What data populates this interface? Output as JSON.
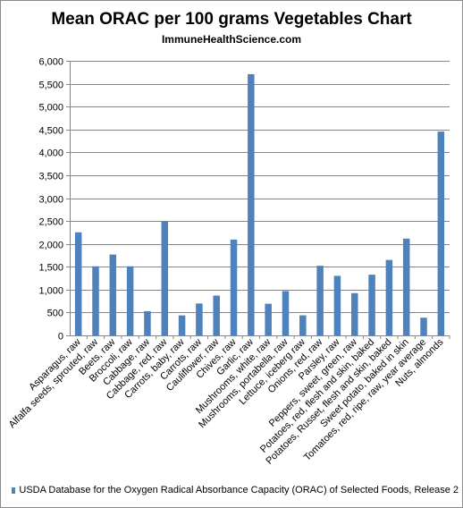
{
  "colors": {
    "bar": "#4f81bd",
    "grid": "#878787",
    "axis": "#878787"
  },
  "chart_data": {
    "type": "bar",
    "title": "Mean ORAC per 100 grams Vegetables Chart",
    "subtitle": "ImmuneHealthScience.com",
    "xlabel": "",
    "ylabel": "",
    "ylim": [
      0,
      6000
    ],
    "yticks": [
      "0",
      "500",
      "1,000",
      "1,500",
      "2,000",
      "2,500",
      "3,000",
      "3,500",
      "4,000",
      "4,500",
      "5,000",
      "5,500",
      "6,000"
    ],
    "grid": true,
    "legend_position": "bottom",
    "categories": [
      "Asparagus, raw",
      "Alfalfa seeds, sprouted, raw",
      "Beets, raw",
      "Broccoli, raw",
      "Cabbage, raw",
      "Cabbage, red, raw",
      "Carrots, baby, raw",
      "Carrots, raw",
      "Cauliflower, raw",
      "Chives, raw",
      "Garlic, raw",
      "Mushrooms, white, raw",
      "Mushrooms, portabella, raw",
      "Lettuce, iceberg raw",
      "Onions, red, raw",
      "Parsley, raw",
      "Peppers, sweet, green, raw",
      "Potatoes, red, flesh and skin, baked",
      "Potatoes, Russet, flesh and skin, baked",
      "Sweet potato, baked in skin",
      "Tomatoes, red, ripe, raw, year average",
      "Nuts, almonds"
    ],
    "series": [
      {
        "name": "USDA Database for the Oxygen Radical Absorbance Capacity (ORAC) of Selected Foods, Release 2",
        "values": [
          2252,
          1510,
          1767,
          1510,
          529,
          2496,
          437,
          697,
          870,
          2094,
          5708,
          691,
          968,
          438,
          1521,
          1301,
          923,
          1326,
          1649,
          2115,
          387,
          4454
        ]
      }
    ]
  }
}
